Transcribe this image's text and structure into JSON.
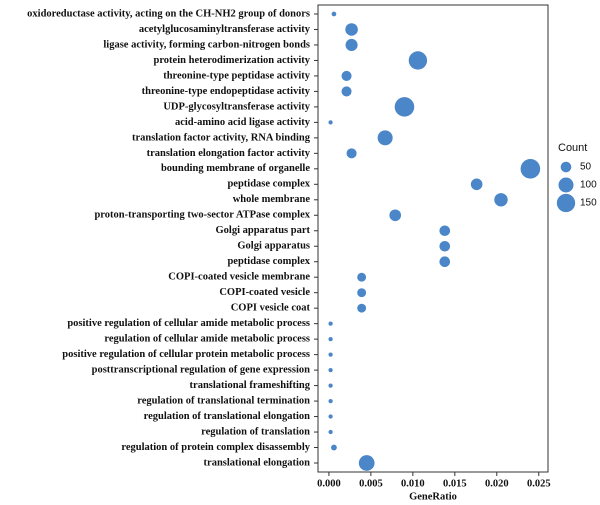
{
  "chart_data": {
    "type": "dot",
    "x_label": "GeneRatio",
    "categories": [
      "oxidoreductase activity, acting on the CH-NH2 group of donors",
      "acetylglucosaminyltransferase activity",
      "ligase activity, forming carbon-nitrogen bonds",
      "protein heterodimerization activity",
      "threonine-type peptidase activity",
      "threonine-type endopeptidase activity",
      "UDP-glycosyltransferase activity",
      "acid-amino acid ligase activity",
      "translation factor activity, RNA binding",
      "translation elongation factor activity",
      "bounding membrane of organelle",
      "peptidase complex",
      "whole membrane",
      "proton-transporting two-sector ATPase complex",
      "Golgi apparatus part",
      "Golgi apparatus",
      "peptidase complex",
      "COPI-coated vesicle membrane",
      "COPI-coated vesicle",
      "COPI vesicle coat",
      "positive regulation of cellular amide metabolic process",
      "regulation of cellular amide metabolic process",
      "positive regulation of cellular protein metabolic process",
      "posttranscriptional regulation of gene expression",
      "translational frameshifting",
      "regulation of translational termination",
      "regulation of translational elongation",
      "regulation of translation",
      "regulation of protein complex disassembly",
      "translational elongation"
    ],
    "values": [
      0.0006,
      0.0027,
      0.0027,
      0.0106,
      0.0021,
      0.0021,
      0.009,
      0.0002,
      0.0067,
      0.0027,
      0.024,
      0.0176,
      0.0205,
      0.0079,
      0.0138,
      0.0138,
      0.0138,
      0.0039,
      0.0039,
      0.0039,
      0.0002,
      0.0002,
      0.0002,
      0.0002,
      0.0002,
      0.0002,
      0.0002,
      0.0002,
      0.0006,
      0.0045
    ],
    "sizes": [
      10,
      70,
      65,
      150,
      45,
      45,
      170,
      8,
      100,
      45,
      170,
      60,
      80,
      60,
      50,
      50,
      50,
      35,
      35,
      35,
      8,
      8,
      8,
      8,
      8,
      8,
      8,
      8,
      15,
      110
    ],
    "color": "#4a86c8",
    "xlim": [
      -0.0013,
      0.0261
    ],
    "xticks": [
      {
        "value": 0,
        "label": "0.000"
      },
      {
        "value": 0.005,
        "label": "0.005"
      },
      {
        "value": 0.01,
        "label": "0.010"
      },
      {
        "value": 0.015,
        "label": "0.015"
      },
      {
        "value": 0.02,
        "label": "0.020"
      },
      {
        "value": 0.025,
        "label": "0.025"
      }
    ],
    "size_legend": {
      "title": "Count",
      "values": [
        50,
        100,
        150
      ]
    }
  }
}
